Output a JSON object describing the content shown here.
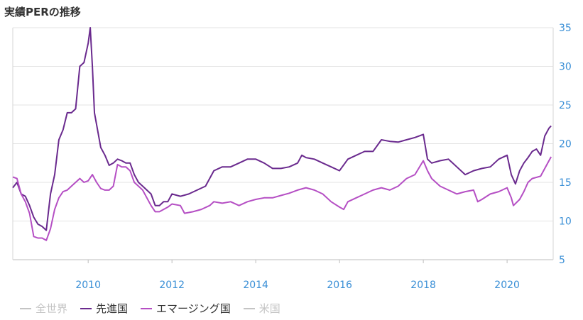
{
  "chart_data": {
    "type": "line",
    "title": "実績PERの推移",
    "xlabel": "",
    "ylabel": "",
    "xlim": [
      2008.2,
      2021.1
    ],
    "ylim": [
      5,
      35
    ],
    "yticks": [
      5,
      10,
      15,
      20,
      25,
      30,
      35
    ],
    "xticks": [
      2010,
      2012,
      2014,
      2016,
      2018,
      2020
    ],
    "grid": true,
    "y_axis_side": "right",
    "legend_position": "bottom-left",
    "series": [
      {
        "name": "全世界",
        "visible": false,
        "color": "#c4c4c4",
        "points": []
      },
      {
        "name": "先進国",
        "visible": true,
        "color": "#6a2a8e",
        "points": [
          [
            2008.2,
            14.3
          ],
          [
            2008.3,
            15.0
          ],
          [
            2008.4,
            13.5
          ],
          [
            2008.5,
            13.2
          ],
          [
            2008.6,
            12.0
          ],
          [
            2008.7,
            10.5
          ],
          [
            2008.8,
            9.6
          ],
          [
            2008.9,
            9.3
          ],
          [
            2009.0,
            8.8
          ],
          [
            2009.1,
            13.5
          ],
          [
            2009.2,
            16.0
          ],
          [
            2009.3,
            20.5
          ],
          [
            2009.4,
            21.8
          ],
          [
            2009.5,
            24.0
          ],
          [
            2009.6,
            24.0
          ],
          [
            2009.7,
            24.5
          ],
          [
            2009.8,
            30.0
          ],
          [
            2009.9,
            30.5
          ],
          [
            2010.0,
            33.0
          ],
          [
            2010.05,
            35.0
          ],
          [
            2010.1,
            30.0
          ],
          [
            2010.15,
            24.0
          ],
          [
            2010.3,
            19.5
          ],
          [
            2010.4,
            18.5
          ],
          [
            2010.5,
            17.2
          ],
          [
            2010.6,
            17.5
          ],
          [
            2010.7,
            18.0
          ],
          [
            2010.8,
            17.8
          ],
          [
            2010.9,
            17.5
          ],
          [
            2011.0,
            17.5
          ],
          [
            2011.1,
            16.0
          ],
          [
            2011.2,
            15.0
          ],
          [
            2011.3,
            14.5
          ],
          [
            2011.4,
            14.0
          ],
          [
            2011.5,
            13.5
          ],
          [
            2011.6,
            12.0
          ],
          [
            2011.7,
            12.0
          ],
          [
            2011.8,
            12.5
          ],
          [
            2011.9,
            12.5
          ],
          [
            2012.0,
            13.5
          ],
          [
            2012.2,
            13.2
          ],
          [
            2012.4,
            13.5
          ],
          [
            2012.6,
            14.0
          ],
          [
            2012.8,
            14.5
          ],
          [
            2013.0,
            16.5
          ],
          [
            2013.2,
            17.0
          ],
          [
            2013.4,
            17.0
          ],
          [
            2013.6,
            17.5
          ],
          [
            2013.8,
            18.0
          ],
          [
            2014.0,
            18.0
          ],
          [
            2014.2,
            17.5
          ],
          [
            2014.4,
            16.8
          ],
          [
            2014.6,
            16.8
          ],
          [
            2014.8,
            17.0
          ],
          [
            2015.0,
            17.5
          ],
          [
            2015.1,
            18.5
          ],
          [
            2015.2,
            18.2
          ],
          [
            2015.4,
            18.0
          ],
          [
            2015.6,
            17.5
          ],
          [
            2015.8,
            17.0
          ],
          [
            2016.0,
            16.5
          ],
          [
            2016.2,
            18.0
          ],
          [
            2016.4,
            18.5
          ],
          [
            2016.6,
            19.0
          ],
          [
            2016.8,
            19.0
          ],
          [
            2017.0,
            20.5
          ],
          [
            2017.2,
            20.3
          ],
          [
            2017.4,
            20.2
          ],
          [
            2017.6,
            20.5
          ],
          [
            2017.8,
            20.8
          ],
          [
            2018.0,
            21.2
          ],
          [
            2018.1,
            18.0
          ],
          [
            2018.2,
            17.5
          ],
          [
            2018.4,
            17.8
          ],
          [
            2018.6,
            18.0
          ],
          [
            2018.8,
            17.0
          ],
          [
            2019.0,
            16.0
          ],
          [
            2019.2,
            16.5
          ],
          [
            2019.4,
            16.8
          ],
          [
            2019.6,
            17.0
          ],
          [
            2019.8,
            18.0
          ],
          [
            2020.0,
            18.5
          ],
          [
            2020.1,
            16.0
          ],
          [
            2020.2,
            14.8
          ],
          [
            2020.3,
            16.5
          ],
          [
            2020.4,
            17.5
          ],
          [
            2020.5,
            18.2
          ],
          [
            2020.6,
            19.0
          ],
          [
            2020.7,
            19.3
          ],
          [
            2020.8,
            18.5
          ],
          [
            2020.9,
            21.0
          ],
          [
            2021.0,
            22.0
          ],
          [
            2021.05,
            22.3
          ]
        ]
      },
      {
        "name": "エマージング国",
        "visible": true,
        "color": "#b54fc4",
        "points": [
          [
            2008.2,
            15.7
          ],
          [
            2008.3,
            15.5
          ],
          [
            2008.4,
            13.5
          ],
          [
            2008.5,
            12.5
          ],
          [
            2008.6,
            11.0
          ],
          [
            2008.7,
            8.0
          ],
          [
            2008.8,
            7.8
          ],
          [
            2008.9,
            7.8
          ],
          [
            2009.0,
            7.5
          ],
          [
            2009.1,
            9.0
          ],
          [
            2009.2,
            11.5
          ],
          [
            2009.3,
            13.0
          ],
          [
            2009.4,
            13.8
          ],
          [
            2009.5,
            14.0
          ],
          [
            2009.6,
            14.5
          ],
          [
            2009.7,
            15.0
          ],
          [
            2009.8,
            15.5
          ],
          [
            2009.9,
            15.0
          ],
          [
            2010.0,
            15.2
          ],
          [
            2010.1,
            16.0
          ],
          [
            2010.2,
            15.0
          ],
          [
            2010.3,
            14.2
          ],
          [
            2010.4,
            14.0
          ],
          [
            2010.5,
            14.0
          ],
          [
            2010.6,
            14.5
          ],
          [
            2010.7,
            17.3
          ],
          [
            2010.8,
            17.0
          ],
          [
            2010.9,
            17.0
          ],
          [
            2011.0,
            16.5
          ],
          [
            2011.1,
            15.0
          ],
          [
            2011.2,
            14.5
          ],
          [
            2011.3,
            14.0
          ],
          [
            2011.4,
            13.0
          ],
          [
            2011.5,
            12.0
          ],
          [
            2011.6,
            11.2
          ],
          [
            2011.7,
            11.2
          ],
          [
            2011.8,
            11.5
          ],
          [
            2011.9,
            11.8
          ],
          [
            2012.0,
            12.2
          ],
          [
            2012.2,
            12.0
          ],
          [
            2012.3,
            11.0
          ],
          [
            2012.5,
            11.2
          ],
          [
            2012.7,
            11.5
          ],
          [
            2012.9,
            12.0
          ],
          [
            2013.0,
            12.5
          ],
          [
            2013.2,
            12.3
          ],
          [
            2013.4,
            12.5
          ],
          [
            2013.6,
            12.0
          ],
          [
            2013.8,
            12.5
          ],
          [
            2014.0,
            12.8
          ],
          [
            2014.2,
            13.0
          ],
          [
            2014.4,
            13.0
          ],
          [
            2014.6,
            13.3
          ],
          [
            2014.8,
            13.6
          ],
          [
            2015.0,
            14.0
          ],
          [
            2015.2,
            14.3
          ],
          [
            2015.4,
            14.0
          ],
          [
            2015.6,
            13.5
          ],
          [
            2015.8,
            12.5
          ],
          [
            2016.0,
            11.8
          ],
          [
            2016.1,
            11.5
          ],
          [
            2016.2,
            12.5
          ],
          [
            2016.4,
            13.0
          ],
          [
            2016.6,
            13.5
          ],
          [
            2016.8,
            14.0
          ],
          [
            2017.0,
            14.3
          ],
          [
            2017.2,
            14.0
          ],
          [
            2017.4,
            14.5
          ],
          [
            2017.6,
            15.5
          ],
          [
            2017.8,
            16.0
          ],
          [
            2018.0,
            17.8
          ],
          [
            2018.1,
            16.5
          ],
          [
            2018.2,
            15.5
          ],
          [
            2018.4,
            14.5
          ],
          [
            2018.6,
            14.0
          ],
          [
            2018.8,
            13.5
          ],
          [
            2019.0,
            13.8
          ],
          [
            2019.2,
            14.0
          ],
          [
            2019.3,
            12.5
          ],
          [
            2019.4,
            12.8
          ],
          [
            2019.6,
            13.5
          ],
          [
            2019.8,
            13.8
          ],
          [
            2020.0,
            14.3
          ],
          [
            2020.1,
            13.0
          ],
          [
            2020.15,
            12.0
          ],
          [
            2020.3,
            12.8
          ],
          [
            2020.4,
            13.8
          ],
          [
            2020.5,
            15.0
          ],
          [
            2020.6,
            15.5
          ],
          [
            2020.8,
            15.8
          ],
          [
            2020.9,
            16.8
          ],
          [
            2021.0,
            17.8
          ],
          [
            2021.05,
            18.3
          ]
        ]
      },
      {
        "name": "米国",
        "visible": false,
        "color": "#c4c4c4",
        "points": []
      }
    ]
  }
}
